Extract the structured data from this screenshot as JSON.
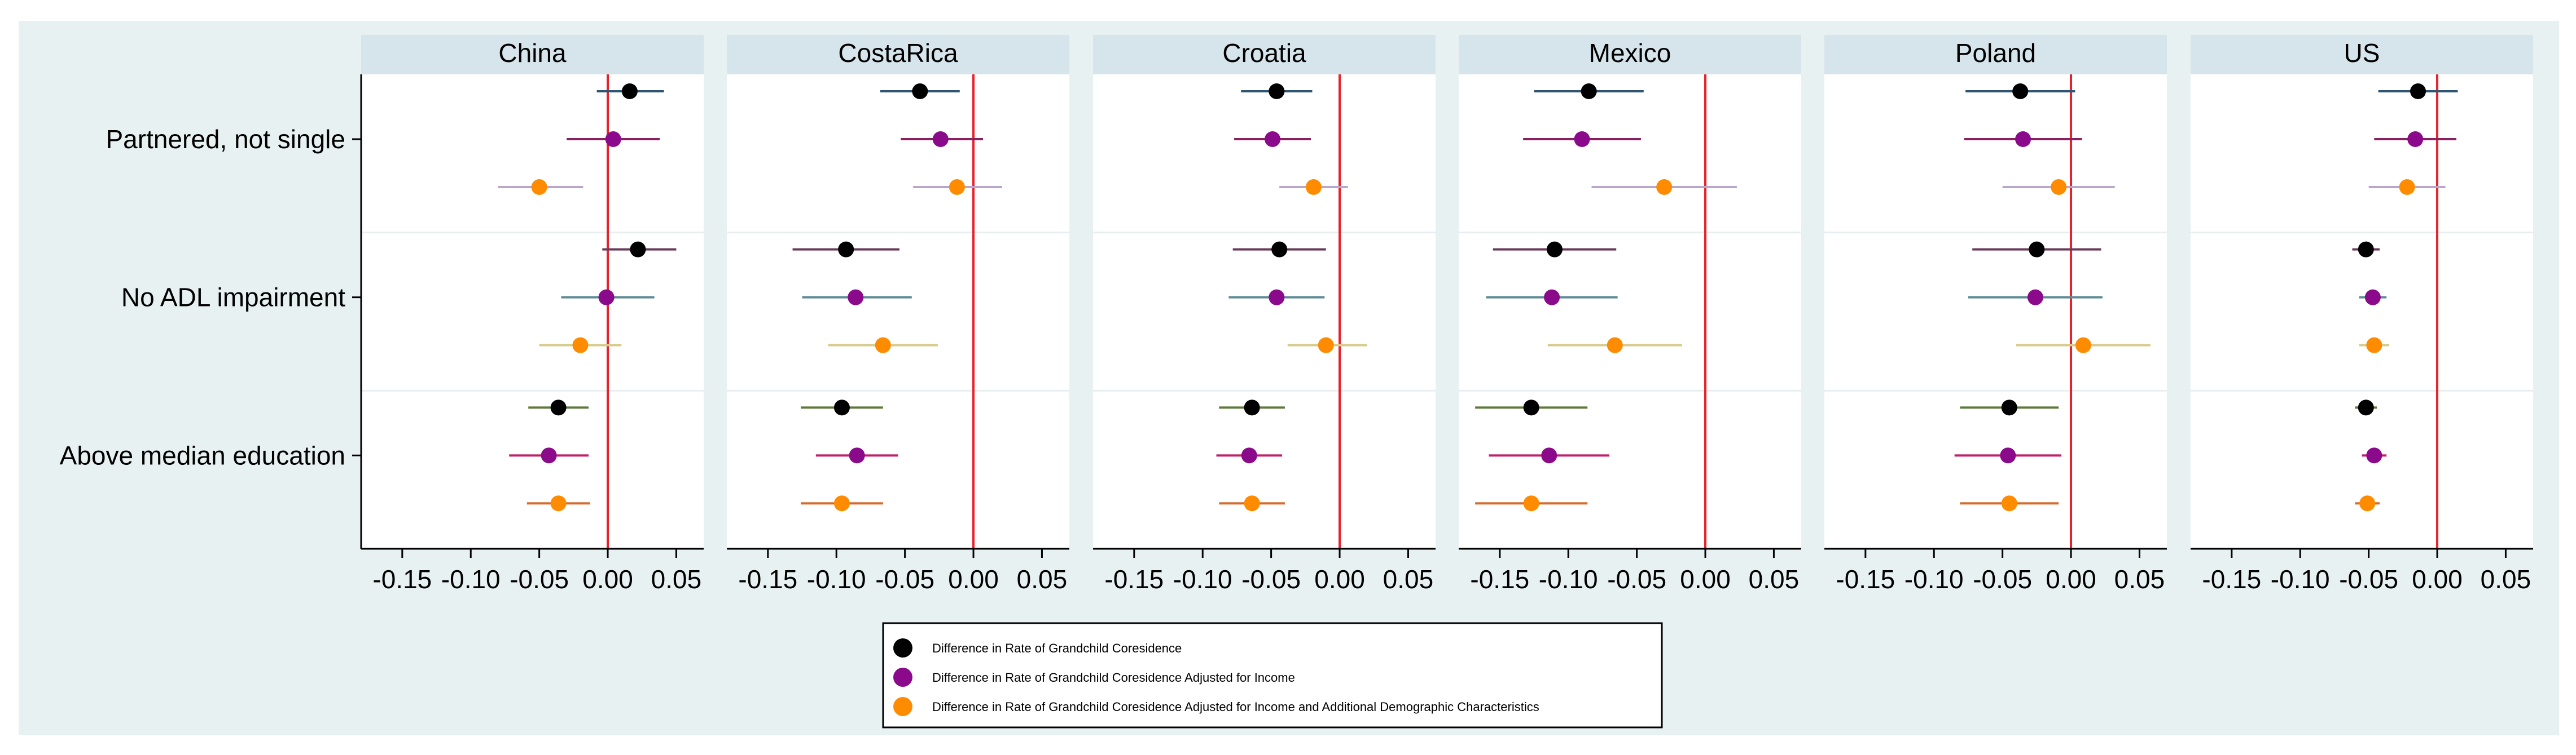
{
  "chart_data": {
    "type": "coefficient-plot",
    "panels": [
      "China",
      "CostaRica",
      "Croatia",
      "Mexico",
      "Poland",
      "US"
    ],
    "groups": [
      "Partnered, not single",
      "No ADL impairment",
      "Above median education"
    ],
    "x_ticks": [
      -0.15,
      -0.1,
      -0.05,
      0.0,
      0.05
    ],
    "x_tick_labels": [
      "-0.15",
      "-0.10",
      "-0.05",
      "0.00",
      "0.05"
    ],
    "xlim": [
      -0.18,
      0.07
    ],
    "reference_line": 0,
    "series": [
      {
        "name": "Difference in Rate of Grandchild Coresidence",
        "color": "#000000",
        "ci_color_key": "black_ci"
      },
      {
        "name": "Difference in Rate of Grandchild Coresidence Adjusted for Income",
        "color": "#8b0a8b",
        "ci_color_key": "purple_ci"
      },
      {
        "name": "Difference in Rate of Grandchild Coresidence Adjusted for Income and Additional Demographic Characteristics",
        "color": "#ff8c00",
        "ci_color_key": "orange_ci"
      }
    ],
    "points": {
      "China": [
        [
          [
            0.016,
            -0.008,
            0.041
          ],
          [
            0.004,
            -0.03,
            0.038
          ],
          [
            -0.05,
            -0.08,
            -0.018
          ]
        ],
        [
          [
            0.022,
            -0.004,
            0.05
          ],
          [
            -0.001,
            -0.034,
            0.034
          ],
          [
            -0.02,
            -0.05,
            0.01
          ]
        ],
        [
          [
            -0.036,
            -0.058,
            -0.014
          ],
          [
            -0.043,
            -0.072,
            -0.014
          ],
          [
            -0.036,
            -0.059,
            -0.013
          ]
        ]
      ],
      "CostaRica": [
        [
          [
            -0.039,
            -0.068,
            -0.01
          ],
          [
            -0.024,
            -0.053,
            0.007
          ],
          [
            -0.012,
            -0.044,
            0.021
          ]
        ],
        [
          [
            -0.093,
            -0.132,
            -0.054
          ],
          [
            -0.086,
            -0.125,
            -0.045
          ],
          [
            -0.066,
            -0.106,
            -0.026
          ]
        ],
        [
          [
            -0.096,
            -0.126,
            -0.066
          ],
          [
            -0.085,
            -0.115,
            -0.055
          ],
          [
            -0.096,
            -0.126,
            -0.066
          ]
        ]
      ],
      "Croatia": [
        [
          [
            -0.046,
            -0.072,
            -0.02
          ],
          [
            -0.049,
            -0.077,
            -0.021
          ],
          [
            -0.019,
            -0.044,
            0.006
          ]
        ],
        [
          [
            -0.044,
            -0.078,
            -0.01
          ],
          [
            -0.046,
            -0.081,
            -0.011
          ],
          [
            -0.01,
            -0.038,
            0.02
          ]
        ],
        [
          [
            -0.064,
            -0.088,
            -0.04
          ],
          [
            -0.066,
            -0.09,
            -0.042
          ],
          [
            -0.064,
            -0.088,
            -0.04
          ]
        ]
      ],
      "Mexico": [
        [
          [
            -0.085,
            -0.125,
            -0.045
          ],
          [
            -0.09,
            -0.133,
            -0.047
          ],
          [
            -0.03,
            -0.083,
            0.023
          ]
        ],
        [
          [
            -0.11,
            -0.155,
            -0.065
          ],
          [
            -0.112,
            -0.16,
            -0.064
          ],
          [
            -0.066,
            -0.115,
            -0.017
          ]
        ],
        [
          [
            -0.127,
            -0.168,
            -0.086
          ],
          [
            -0.114,
            -0.158,
            -0.07
          ],
          [
            -0.127,
            -0.168,
            -0.086
          ]
        ]
      ],
      "Poland": [
        [
          [
            -0.037,
            -0.077,
            0.003
          ],
          [
            -0.035,
            -0.078,
            0.008
          ],
          [
            -0.009,
            -0.05,
            0.032
          ]
        ],
        [
          [
            -0.025,
            -0.072,
            0.022
          ],
          [
            -0.026,
            -0.075,
            0.023
          ],
          [
            0.009,
            -0.04,
            0.058
          ]
        ],
        [
          [
            -0.045,
            -0.081,
            -0.009
          ],
          [
            -0.046,
            -0.085,
            -0.007
          ],
          [
            -0.045,
            -0.081,
            -0.009
          ]
        ]
      ],
      "US": [
        [
          [
            -0.014,
            -0.043,
            0.015
          ],
          [
            -0.016,
            -0.046,
            0.014
          ],
          [
            -0.022,
            -0.05,
            0.006
          ]
        ],
        [
          [
            -0.052,
            -0.062,
            -0.042
          ],
          [
            -0.047,
            -0.057,
            -0.037
          ],
          [
            -0.046,
            -0.057,
            -0.035
          ]
        ],
        [
          [
            -0.052,
            -0.06,
            -0.044
          ],
          [
            -0.046,
            -0.055,
            -0.037
          ],
          [
            -0.051,
            -0.06,
            -0.042
          ]
        ]
      ]
    },
    "legend": [
      "Difference in Rate of Grandchild Coresidence",
      "Difference in Rate of Grandchild Coresidence Adjusted for Income",
      "Difference in Rate of Grandchild Coresidence Adjusted for Income and Additional Demographic Characteristics"
    ],
    "legend_position": "bottom-center"
  },
  "colors": {
    "outer_bg": "#e8f1f2",
    "panel_bg": "#ffffff",
    "strip_bg": "#d6e4eb",
    "axis": "#000000",
    "ref_line": "#e8202a",
    "separator": "#e6eef2",
    "black_ci": "#2f5573",
    "purple_ci": "#8a2060",
    "orange_ci": "#f09c2a",
    "black_ci_alt": "#6a3a5a",
    "purple_ci_alt": "#5d8a94",
    "orange_ci_alt": "#d6cc8a",
    "black_ci_grn": "#5d7a3a",
    "purple_ci_grn": "#c0206a",
    "orange_ci_grn": "#d66a2a",
    "lav_ci": "#b8a6cc"
  }
}
